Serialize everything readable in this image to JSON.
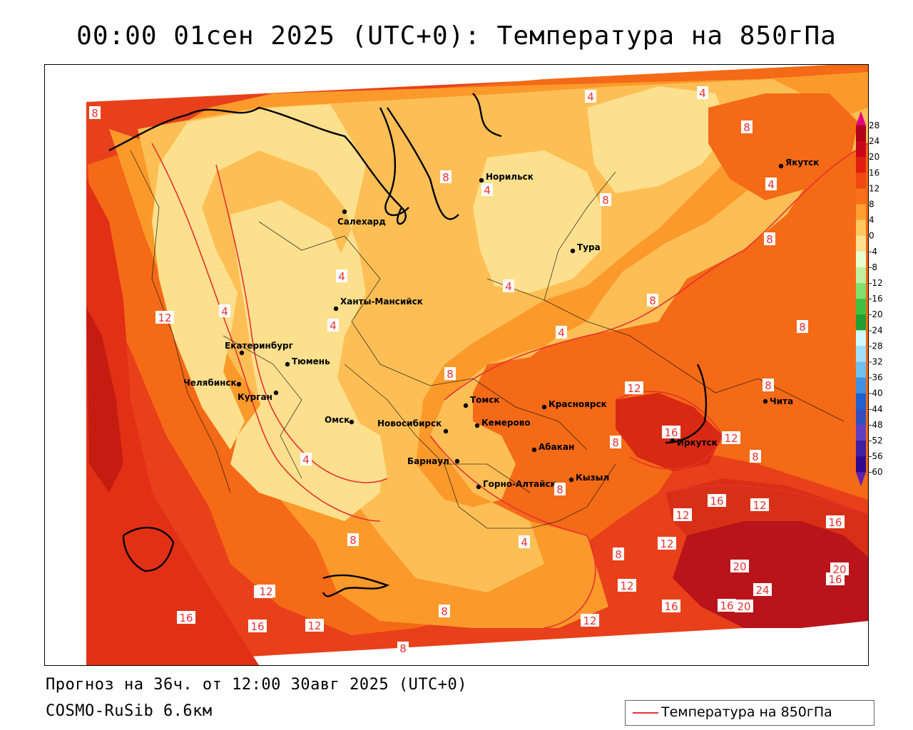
{
  "title": "00:00 01сен 2025 (UTC+0): Температура на 850гПа",
  "footer": {
    "forecast": "Прогноз на 36ч. от 12:00 30авг 2025 (UTC+0)",
    "model": "COSMO-RuSib 6.6км"
  },
  "legend": {
    "label": "Температура на 850гПа",
    "color": "#e83030"
  },
  "colorbar": {
    "ticks": [
      "28",
      "24",
      "20",
      "16",
      "12",
      "8",
      "4",
      "0",
      "-4",
      "-8",
      "-12",
      "-16",
      "-20",
      "-24",
      "-28",
      "-32",
      "-36",
      "-40",
      "-44",
      "-48",
      "-52",
      "-56",
      "-60"
    ],
    "colors": [
      "#b0001a",
      "#c8081a",
      "#e0200e",
      "#f04810",
      "#f87018",
      "#ffa030",
      "#ffc860",
      "#ffe090",
      "#e8ffd0",
      "#c0f0a0",
      "#80e070",
      "#40c040",
      "#20a030",
      "#d0f8ff",
      "#a0e0f8",
      "#70c0f0",
      "#4090e0",
      "#2060d0",
      "#3050c0",
      "#6040c0",
      "#4020a0",
      "#300890"
    ],
    "top_color": "#e00080",
    "bottom_color": "#6020b0"
  },
  "cities": [
    {
      "name": "Норильск"
    },
    {
      "name": "Якутск"
    },
    {
      "name": "Салехард"
    },
    {
      "name": "Тура"
    },
    {
      "name": "Ханты-Мансийск"
    },
    {
      "name": "Екатеринбург"
    },
    {
      "name": "Тюмень"
    },
    {
      "name": "Челябинск"
    },
    {
      "name": "Курган"
    },
    {
      "name": "Омск"
    },
    {
      "name": "Новосибирск"
    },
    {
      "name": "Томск"
    },
    {
      "name": "Кемерово"
    },
    {
      "name": "Красноярск"
    },
    {
      "name": "Барнаул"
    },
    {
      "name": "Абакан"
    },
    {
      "name": "Горно-Алтайск"
    },
    {
      "name": "Кызыл"
    },
    {
      "name": "Иркутск"
    },
    {
      "name": "Чита"
    }
  ],
  "isotherm_labels": [
    "8",
    "4",
    "4",
    "8",
    "4",
    "8",
    "4",
    "4",
    "8",
    "8",
    "8",
    "4",
    "4",
    "12",
    "4",
    "4",
    "8",
    "8",
    "12",
    "8",
    "16",
    "12",
    "8",
    "8",
    "4",
    "8",
    "12",
    "16",
    "12",
    "16",
    "12",
    "12",
    "16",
    "8",
    "4",
    "16",
    "12",
    "20",
    "20",
    "12",
    "8",
    "20",
    "24",
    "16",
    "16",
    "16",
    "12",
    "12",
    "8",
    "8",
    "20"
  ],
  "colors": {
    "deep": "#c01a10",
    "warm16": "#e8401a",
    "warm12": "#f46a16",
    "warm8": "#fb9a2a",
    "warm4": "#fdbf55",
    "cool0": "#fde08e",
    "contour": "#e83030"
  }
}
